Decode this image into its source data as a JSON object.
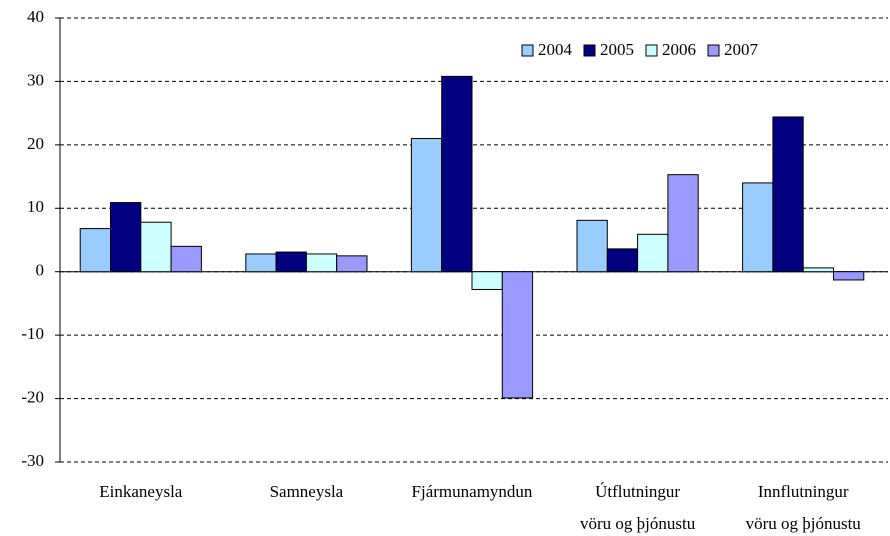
{
  "chart_data": {
    "type": "bar",
    "categories": [
      "Einkaneysla",
      "Samneysla",
      "Fjármunamyndun",
      "Útflutningur\nvöru og þjónustu",
      "Innflutningur\nvöru og þjónustu"
    ],
    "series": [
      {
        "name": "2004",
        "color": "#99ccff",
        "values": [
          6.8,
          2.8,
          21.0,
          8.1,
          14.0
        ]
      },
      {
        "name": "2005",
        "color": "#000080",
        "values": [
          10.9,
          3.1,
          30.8,
          3.6,
          24.4
        ]
      },
      {
        "name": "2006",
        "color": "#ccffff",
        "values": [
          7.8,
          2.8,
          -2.8,
          5.9,
          0.6
        ]
      },
      {
        "name": "2007",
        "color": "#9999ff",
        "values": [
          4.0,
          2.5,
          -19.9,
          15.3,
          -1.3
        ]
      }
    ],
    "ylim": [
      -30,
      40
    ],
    "yticks": [
      -30,
      -20,
      -10,
      0,
      10,
      20,
      30,
      40
    ],
    "grid": true,
    "legend": "top-right"
  }
}
